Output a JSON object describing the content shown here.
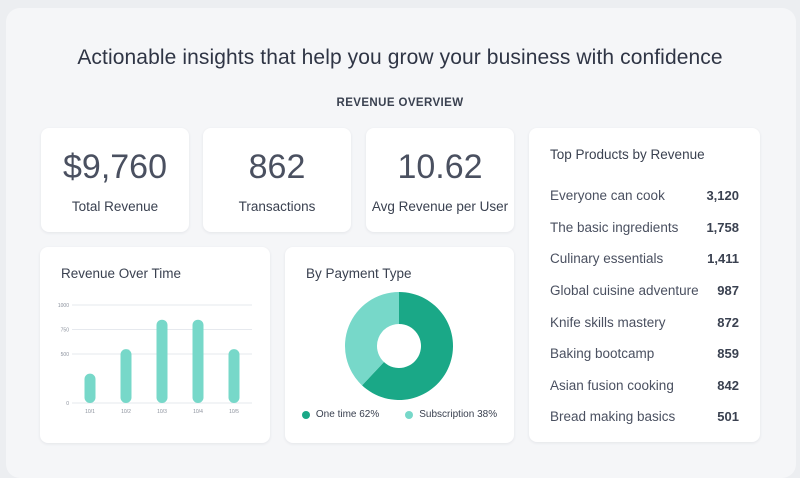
{
  "headline": "Actionable insights that help you grow your business with confidence",
  "section_title": "REVENUE OVERVIEW",
  "kpis": [
    {
      "value": "$9,760",
      "label": "Total Revenue"
    },
    {
      "value": "862",
      "label": "Transactions"
    },
    {
      "value": "10.62",
      "label": "Avg Revenue per User"
    }
  ],
  "revenue_chart": {
    "title": "Revenue Over Time"
  },
  "payment_chart": {
    "title": "By Payment Type",
    "legend": [
      {
        "label": "One time 62%",
        "color": "#1aa887"
      },
      {
        "label": "Subscription 38%",
        "color": "#77d8c9"
      }
    ]
  },
  "top_products": {
    "title": "Top Products by Revenue",
    "items": [
      {
        "name": "Everyone can cook",
        "value": "3,120"
      },
      {
        "name": "The basic ingredients",
        "value": "1,758"
      },
      {
        "name": "Culinary essentials",
        "value": "1,411"
      },
      {
        "name": "Global cuisine adventure",
        "value": "987"
      },
      {
        "name": "Knife skills mastery",
        "value": "872"
      },
      {
        "name": "Baking bootcamp",
        "value": "859"
      },
      {
        "name": "Asian fusion cooking",
        "value": "842"
      },
      {
        "name": "Bread making basics",
        "value": "501"
      }
    ]
  },
  "colors": {
    "accent": "#1aa887",
    "accent_light": "#77d8c9"
  },
  "chart_data": [
    {
      "type": "bar",
      "title": "Revenue Over Time",
      "categories": [
        "10/1",
        "10/2",
        "10/3",
        "10/4",
        "10/5"
      ],
      "values": [
        300,
        550,
        850,
        850,
        550
      ],
      "yticks": [
        "1000",
        "750",
        "500",
        "0"
      ],
      "ylim": [
        0,
        1000
      ],
      "grid": true,
      "color": "#77d8c9"
    },
    {
      "type": "pie",
      "title": "By Payment Type",
      "labels": [
        "One time",
        "Subscription"
      ],
      "values": [
        62,
        38
      ],
      "colors": [
        "#1aa887",
        "#77d8c9"
      ]
    }
  ]
}
